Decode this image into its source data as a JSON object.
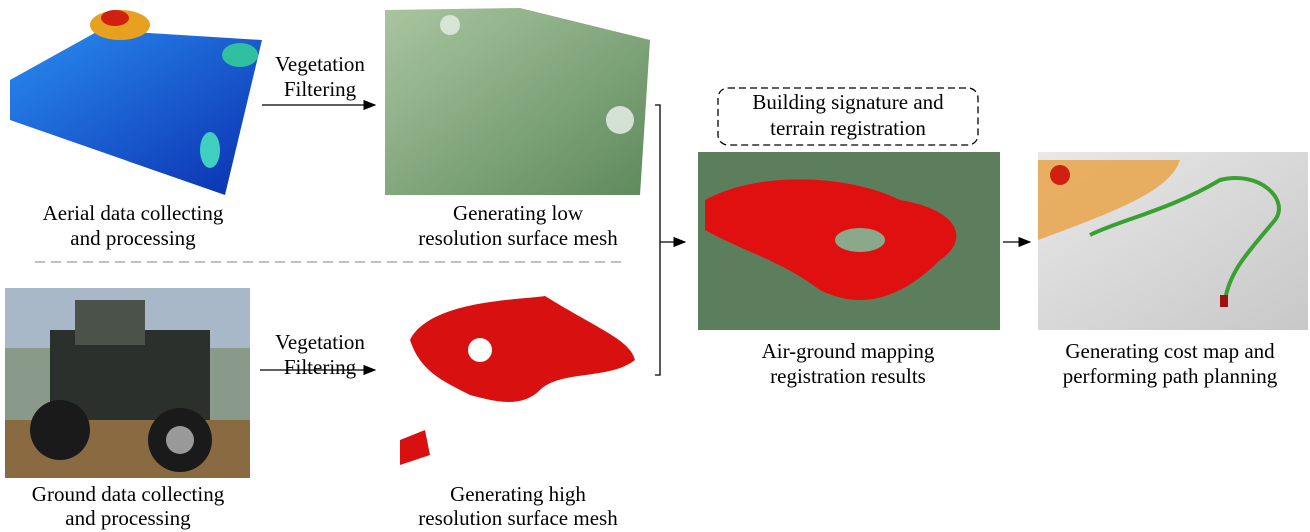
{
  "nodes": [
    {
      "caption": [
        "Aerial data collecting",
        "and processing"
      ]
    },
    {
      "caption": [
        "Generating low",
        "resolution surface mesh"
      ]
    },
    {
      "caption": [
        "Ground data collecting",
        "and processing"
      ]
    },
    {
      "caption": [
        "Generating high",
        "resolution surface mesh"
      ]
    },
    {
      "caption": [
        "Air-ground mapping",
        "registration results"
      ]
    },
    {
      "caption": [
        "Generating cost map and",
        "performing path planning"
      ]
    }
  ],
  "edges": [
    {
      "label": [
        "Vegetation",
        "Filtering"
      ]
    },
    {
      "label": [
        "Vegetation",
        "Filtering"
      ]
    }
  ],
  "annotation": [
    "Building signature and",
    "terrain registration"
  ]
}
